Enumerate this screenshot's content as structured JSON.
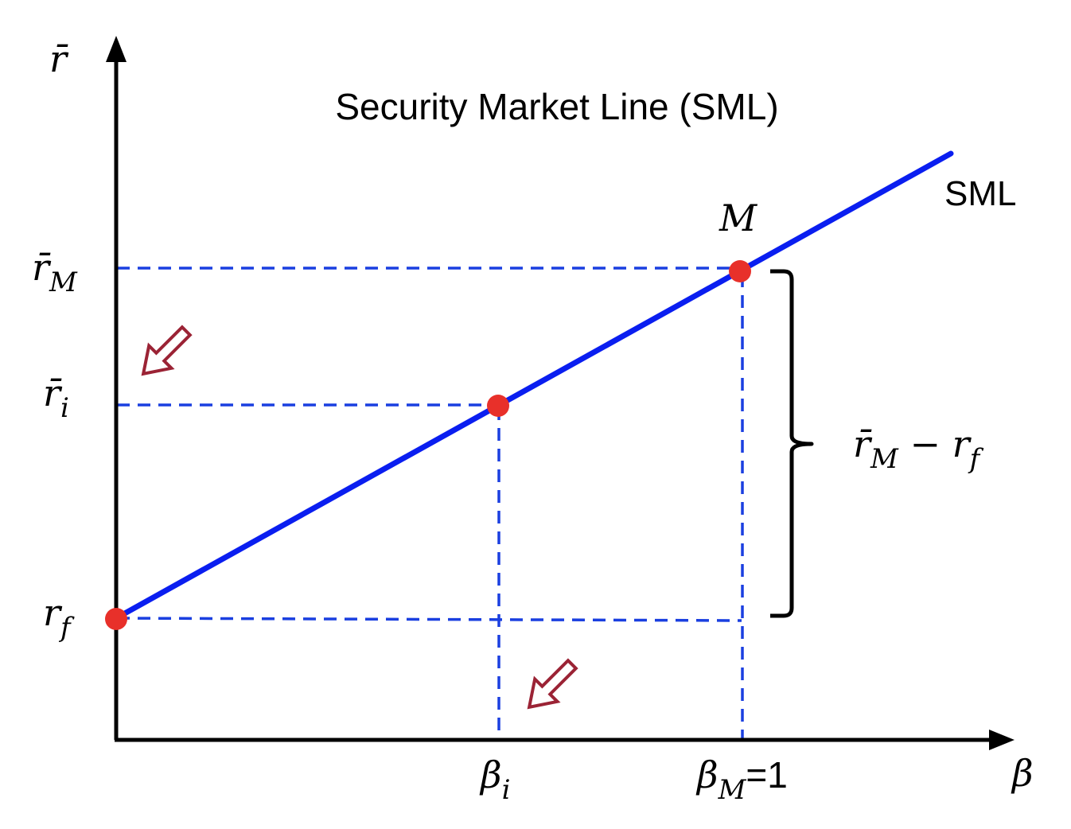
{
  "title": "Security Market Line (SML)",
  "line_label": "SML",
  "axes": {
    "y_label": "r̄",
    "x_label": "β"
  },
  "y_ticks": {
    "r_M": {
      "main": "r̄",
      "sub": "M"
    },
    "r_i": {
      "main": "r̄",
      "sub": "i"
    },
    "r_f": {
      "main": "r",
      "sub": "f"
    }
  },
  "x_ticks": {
    "beta_i": {
      "main": "β",
      "sub": "i"
    },
    "beta_M": {
      "main": "β",
      "sub": "M",
      "suffix": "=1"
    }
  },
  "point_label_M": "M",
  "bracket_label": {
    "a": "r̄",
    "a_sub": "M",
    "op": " − ",
    "b": "r",
    "b_sub": "f"
  },
  "colors": {
    "axis": "#000000",
    "sml_line": "#0a1ef0",
    "guide_dashes": "#1a3fe0",
    "points": "#e8302a",
    "arrows": "#9b2335",
    "bracket": "#000000"
  },
  "icons": [
    "hollow-arrow-icon",
    "hollow-arrow-icon"
  ]
}
